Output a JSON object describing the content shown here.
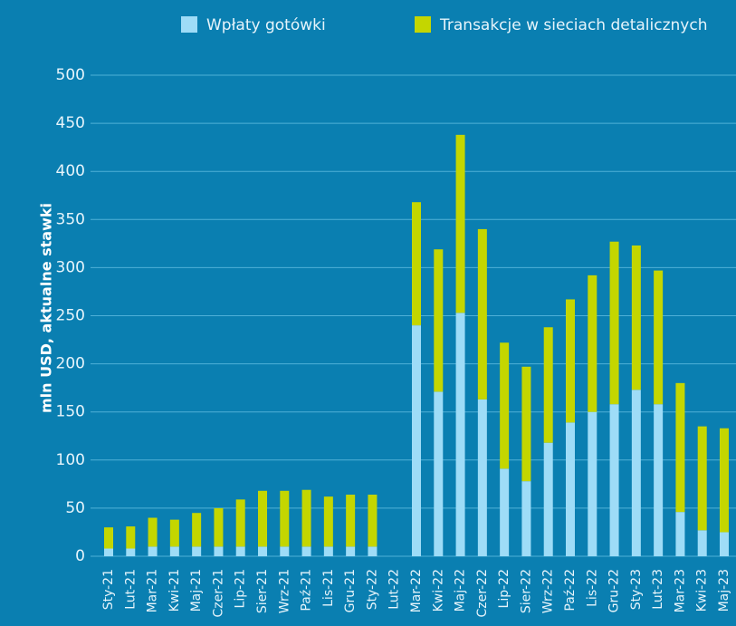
{
  "chart_data": {
    "type": "stacked_bar",
    "ylabel": "mln USD,  aktualne stawki",
    "categories": [
      "Sty-21",
      "Lut-21",
      "Mar-21",
      "Kwi-21",
      "Maj-21",
      "Czer-21",
      "Lip-21",
      "Sier-21",
      "Wrz-21",
      "Paź-21",
      "Lis-21",
      "Gru-21",
      "Sty-22",
      "Lut-22",
      "Mar-22",
      "Kwi-22",
      "Maj-22",
      "Czer-22",
      "Lip-22",
      "Sier-22",
      "Wrz-22",
      "Paź-22",
      "Lis-22",
      "Gru-22",
      "Sty-23",
      "Lut-23",
      "Mar-23",
      "Kwi-23",
      "Maj-23"
    ],
    "series": [
      {
        "name": "Wpłaty gotówki",
        "color": "#9edcf7",
        "values": [
          8,
          8,
          10,
          10,
          10,
          10,
          10,
          10,
          10,
          10,
          10,
          10,
          10,
          null,
          240,
          171,
          253,
          163,
          91,
          78,
          118,
          139,
          150,
          158,
          173,
          158,
          46,
          27,
          25
        ]
      },
      {
        "name": "Transakcje w sieciach detalicznych",
        "color": "#c4d600",
        "values": [
          22,
          23,
          30,
          28,
          35,
          40,
          49,
          58,
          58,
          59,
          52,
          54,
          54,
          null,
          128,
          148,
          185,
          177,
          131,
          119,
          120,
          128,
          142,
          169,
          150,
          139,
          134,
          108,
          108
        ]
      }
    ],
    "ylim": [
      0,
      500
    ],
    "yticks": [
      0,
      50,
      100,
      150,
      200,
      250,
      300,
      350,
      400,
      450,
      500
    ],
    "grid": true,
    "legend": "top"
  }
}
